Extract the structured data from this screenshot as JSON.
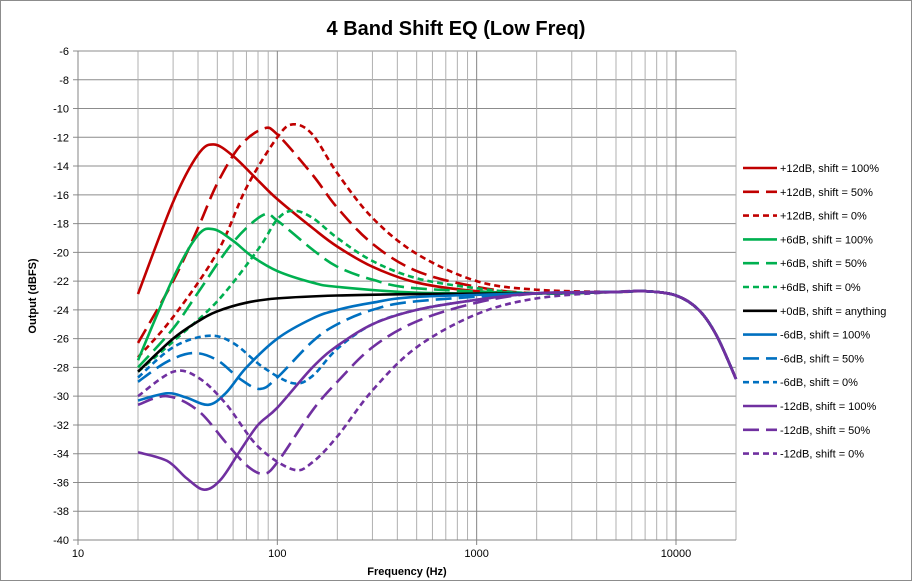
{
  "chart_data": {
    "type": "line",
    "title": "4 Band Shift EQ (Low Freq)",
    "xlabel": "Frequency (Hz)",
    "ylabel": "Output (dBFS)",
    "xscale": "log",
    "xlim": [
      10,
      20000
    ],
    "ylim": [
      -40,
      -6
    ],
    "yticks": [
      -6,
      -8,
      -10,
      -12,
      -14,
      -16,
      -18,
      -20,
      -22,
      -24,
      -26,
      -28,
      -30,
      -32,
      -34,
      -36,
      -38,
      -40
    ],
    "xticks": [
      10,
      100,
      1000,
      10000
    ],
    "xtick_labels": [
      "10",
      "100",
      "1000",
      "10000"
    ],
    "grid": true,
    "legend_position": "right",
    "common_tail": [
      [
        2000,
        -22.85
      ],
      [
        5000,
        -22.75
      ],
      [
        7000,
        -22.7
      ],
      [
        10000,
        -23.0
      ],
      [
        13000,
        -24.0
      ],
      [
        16000,
        -25.8
      ],
      [
        20000,
        -28.8
      ]
    ],
    "series": [
      {
        "name": "+12dB, shift = 100%",
        "color": "#C00000",
        "style": "solid",
        "points": [
          [
            20,
            -22.9
          ],
          [
            30,
            -16.5
          ],
          [
            40,
            -13.2
          ],
          [
            48,
            -12.5
          ],
          [
            60,
            -13.3
          ],
          [
            80,
            -15.0
          ],
          [
            100,
            -16.3
          ],
          [
            150,
            -18.3
          ],
          [
            200,
            -19.6
          ],
          [
            300,
            -21.0
          ],
          [
            500,
            -22.1
          ],
          [
            1000,
            -22.7
          ]
        ]
      },
      {
        "name": "+12dB, shift = 50%",
        "color": "#C00000",
        "style": "long",
        "points": [
          [
            20,
            -26.3
          ],
          [
            30,
            -22.0
          ],
          [
            40,
            -18.3
          ],
          [
            50,
            -15.2
          ],
          [
            65,
            -12.6
          ],
          [
            85,
            -11.4
          ],
          [
            100,
            -11.8
          ],
          [
            150,
            -14.6
          ],
          [
            200,
            -16.9
          ],
          [
            300,
            -19.4
          ],
          [
            500,
            -21.3
          ],
          [
            1000,
            -22.4
          ]
        ]
      },
      {
        "name": "+12dB, shift = 0%",
        "color": "#C00000",
        "style": "short",
        "points": [
          [
            20,
            -27.3
          ],
          [
            30,
            -24.5
          ],
          [
            50,
            -20.0
          ],
          [
            70,
            -15.5
          ],
          [
            100,
            -12.0
          ],
          [
            120,
            -11.1
          ],
          [
            150,
            -11.8
          ],
          [
            200,
            -14.5
          ],
          [
            300,
            -17.6
          ],
          [
            500,
            -20.1
          ],
          [
            1000,
            -22.0
          ],
          [
            2000,
            -22.6
          ]
        ]
      },
      {
        "name": "+6dB, shift = 100%",
        "color": "#00B050",
        "style": "solid",
        "points": [
          [
            20,
            -27.5
          ],
          [
            30,
            -21.8
          ],
          [
            40,
            -18.8
          ],
          [
            48,
            -18.4
          ],
          [
            60,
            -19.2
          ],
          [
            75,
            -20.3
          ],
          [
            100,
            -21.3
          ],
          [
            150,
            -22.1
          ],
          [
            200,
            -22.4
          ],
          [
            500,
            -22.8
          ]
        ]
      },
      {
        "name": "+6dB, shift = 50%",
        "color": "#00B050",
        "style": "long",
        "points": [
          [
            20,
            -28.0
          ],
          [
            30,
            -25.3
          ],
          [
            40,
            -22.8
          ],
          [
            60,
            -19.3
          ],
          [
            85,
            -17.4
          ],
          [
            100,
            -17.8
          ],
          [
            150,
            -19.8
          ],
          [
            200,
            -21.0
          ],
          [
            300,
            -21.9
          ],
          [
            500,
            -22.5
          ]
        ]
      },
      {
        "name": "+6dB, shift = 0%",
        "color": "#00B050",
        "style": "short",
        "points": [
          [
            20,
            -28.3
          ],
          [
            30,
            -26.2
          ],
          [
            50,
            -23.4
          ],
          [
            80,
            -19.8
          ],
          [
            100,
            -17.7
          ],
          [
            120,
            -17.1
          ],
          [
            150,
            -17.6
          ],
          [
            200,
            -19.0
          ],
          [
            300,
            -20.6
          ],
          [
            500,
            -21.8
          ],
          [
            1000,
            -22.5
          ]
        ]
      },
      {
        "name": "+0dB, shift = anything",
        "color": "#000000",
        "style": "solid",
        "points": [
          [
            20,
            -28.3
          ],
          [
            30,
            -26.0
          ],
          [
            40,
            -24.8
          ],
          [
            50,
            -24.1
          ],
          [
            70,
            -23.5
          ],
          [
            100,
            -23.2
          ],
          [
            200,
            -23.0
          ],
          [
            500,
            -22.9
          ]
        ]
      },
      {
        "name": "-6dB, shift = 100%",
        "color": "#0070C0",
        "style": "solid",
        "points": [
          [
            20,
            -30.3
          ],
          [
            28,
            -29.8
          ],
          [
            35,
            -30.1
          ],
          [
            45,
            -30.6
          ],
          [
            55,
            -29.8
          ],
          [
            70,
            -28.0
          ],
          [
            100,
            -26.0
          ],
          [
            150,
            -24.6
          ],
          [
            200,
            -24.0
          ],
          [
            300,
            -23.5
          ],
          [
            500,
            -23.1
          ]
        ]
      },
      {
        "name": "-6dB, shift = 50%",
        "color": "#0070C0",
        "style": "long",
        "points": [
          [
            20,
            -29.0
          ],
          [
            28,
            -27.6
          ],
          [
            38,
            -27.0
          ],
          [
            50,
            -27.5
          ],
          [
            65,
            -28.8
          ],
          [
            82,
            -29.5
          ],
          [
            100,
            -28.7
          ],
          [
            150,
            -26.2
          ],
          [
            200,
            -25.0
          ],
          [
            300,
            -24.0
          ],
          [
            500,
            -23.4
          ]
        ]
      },
      {
        "name": "-6dB, shift = 0%",
        "color": "#0070C0",
        "style": "short",
        "points": [
          [
            20,
            -28.7
          ],
          [
            30,
            -26.6
          ],
          [
            45,
            -25.8
          ],
          [
            60,
            -26.3
          ],
          [
            85,
            -28.0
          ],
          [
            120,
            -29.1
          ],
          [
            150,
            -28.6
          ],
          [
            200,
            -26.7
          ],
          [
            300,
            -25.0
          ],
          [
            500,
            -24.0
          ],
          [
            1000,
            -23.3
          ]
        ]
      },
      {
        "name": "-12dB, shift = 100%",
        "color": "#7030A0",
        "style": "solid",
        "points": [
          [
            20,
            -33.9
          ],
          [
            28,
            -34.5
          ],
          [
            35,
            -35.7
          ],
          [
            43,
            -36.5
          ],
          [
            52,
            -35.8
          ],
          [
            65,
            -33.8
          ],
          [
            80,
            -32.0
          ],
          [
            100,
            -30.8
          ],
          [
            150,
            -28.0
          ],
          [
            200,
            -26.5
          ],
          [
            300,
            -25.0
          ],
          [
            500,
            -24.0
          ],
          [
            1000,
            -23.3
          ]
        ]
      },
      {
        "name": "-12dB, shift = 50%",
        "color": "#7030A0",
        "style": "long",
        "points": [
          [
            20,
            -30.6
          ],
          [
            28,
            -30.0
          ],
          [
            40,
            -31.0
          ],
          [
            55,
            -33.2
          ],
          [
            70,
            -34.8
          ],
          [
            85,
            -35.4
          ],
          [
            100,
            -34.6
          ],
          [
            150,
            -31.0
          ],
          [
            200,
            -29.0
          ],
          [
            300,
            -26.6
          ],
          [
            500,
            -24.8
          ],
          [
            1000,
            -23.5
          ]
        ]
      },
      {
        "name": "-12dB, shift = 0%",
        "color": "#7030A0",
        "style": "short",
        "points": [
          [
            20,
            -30.0
          ],
          [
            30,
            -28.3
          ],
          [
            40,
            -28.7
          ],
          [
            55,
            -30.5
          ],
          [
            80,
            -33.5
          ],
          [
            120,
            -35.1
          ],
          [
            150,
            -34.6
          ],
          [
            200,
            -32.8
          ],
          [
            300,
            -29.6
          ],
          [
            500,
            -26.6
          ],
          [
            1000,
            -24.3
          ],
          [
            2000,
            -23.2
          ]
        ]
      }
    ]
  }
}
